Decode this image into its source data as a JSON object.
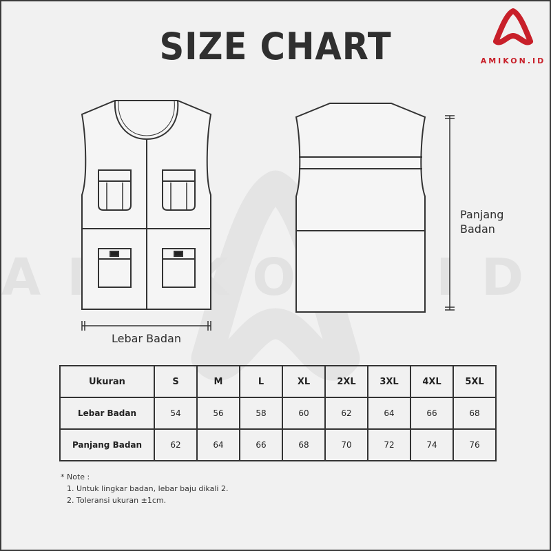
{
  "title": "SIZE CHART",
  "brand": {
    "logo_text": "AMIKON.ID",
    "watermark_text": "AMIKON.ID",
    "color": "#c8202a"
  },
  "diagram": {
    "width_label": "Lebar Badan",
    "length_label_line1": "Panjang",
    "length_label_line2": "Badan"
  },
  "table": {
    "header": [
      "Ukuran",
      "S",
      "M",
      "L",
      "XL",
      "2XL",
      "3XL",
      "4XL",
      "5XL"
    ],
    "rows": [
      {
        "label": "Lebar Badan",
        "values": [
          "54",
          "56",
          "58",
          "60",
          "62",
          "64",
          "66",
          "68"
        ]
      },
      {
        "label": "Panjang Badan",
        "values": [
          "62",
          "64",
          "66",
          "68",
          "70",
          "72",
          "74",
          "76"
        ]
      }
    ]
  },
  "notes": {
    "heading": "* Note :",
    "items": [
      "1. Untuk lingkar badan, lebar baju dikali 2.",
      "2. Toleransi ukuran ±1cm."
    ]
  }
}
